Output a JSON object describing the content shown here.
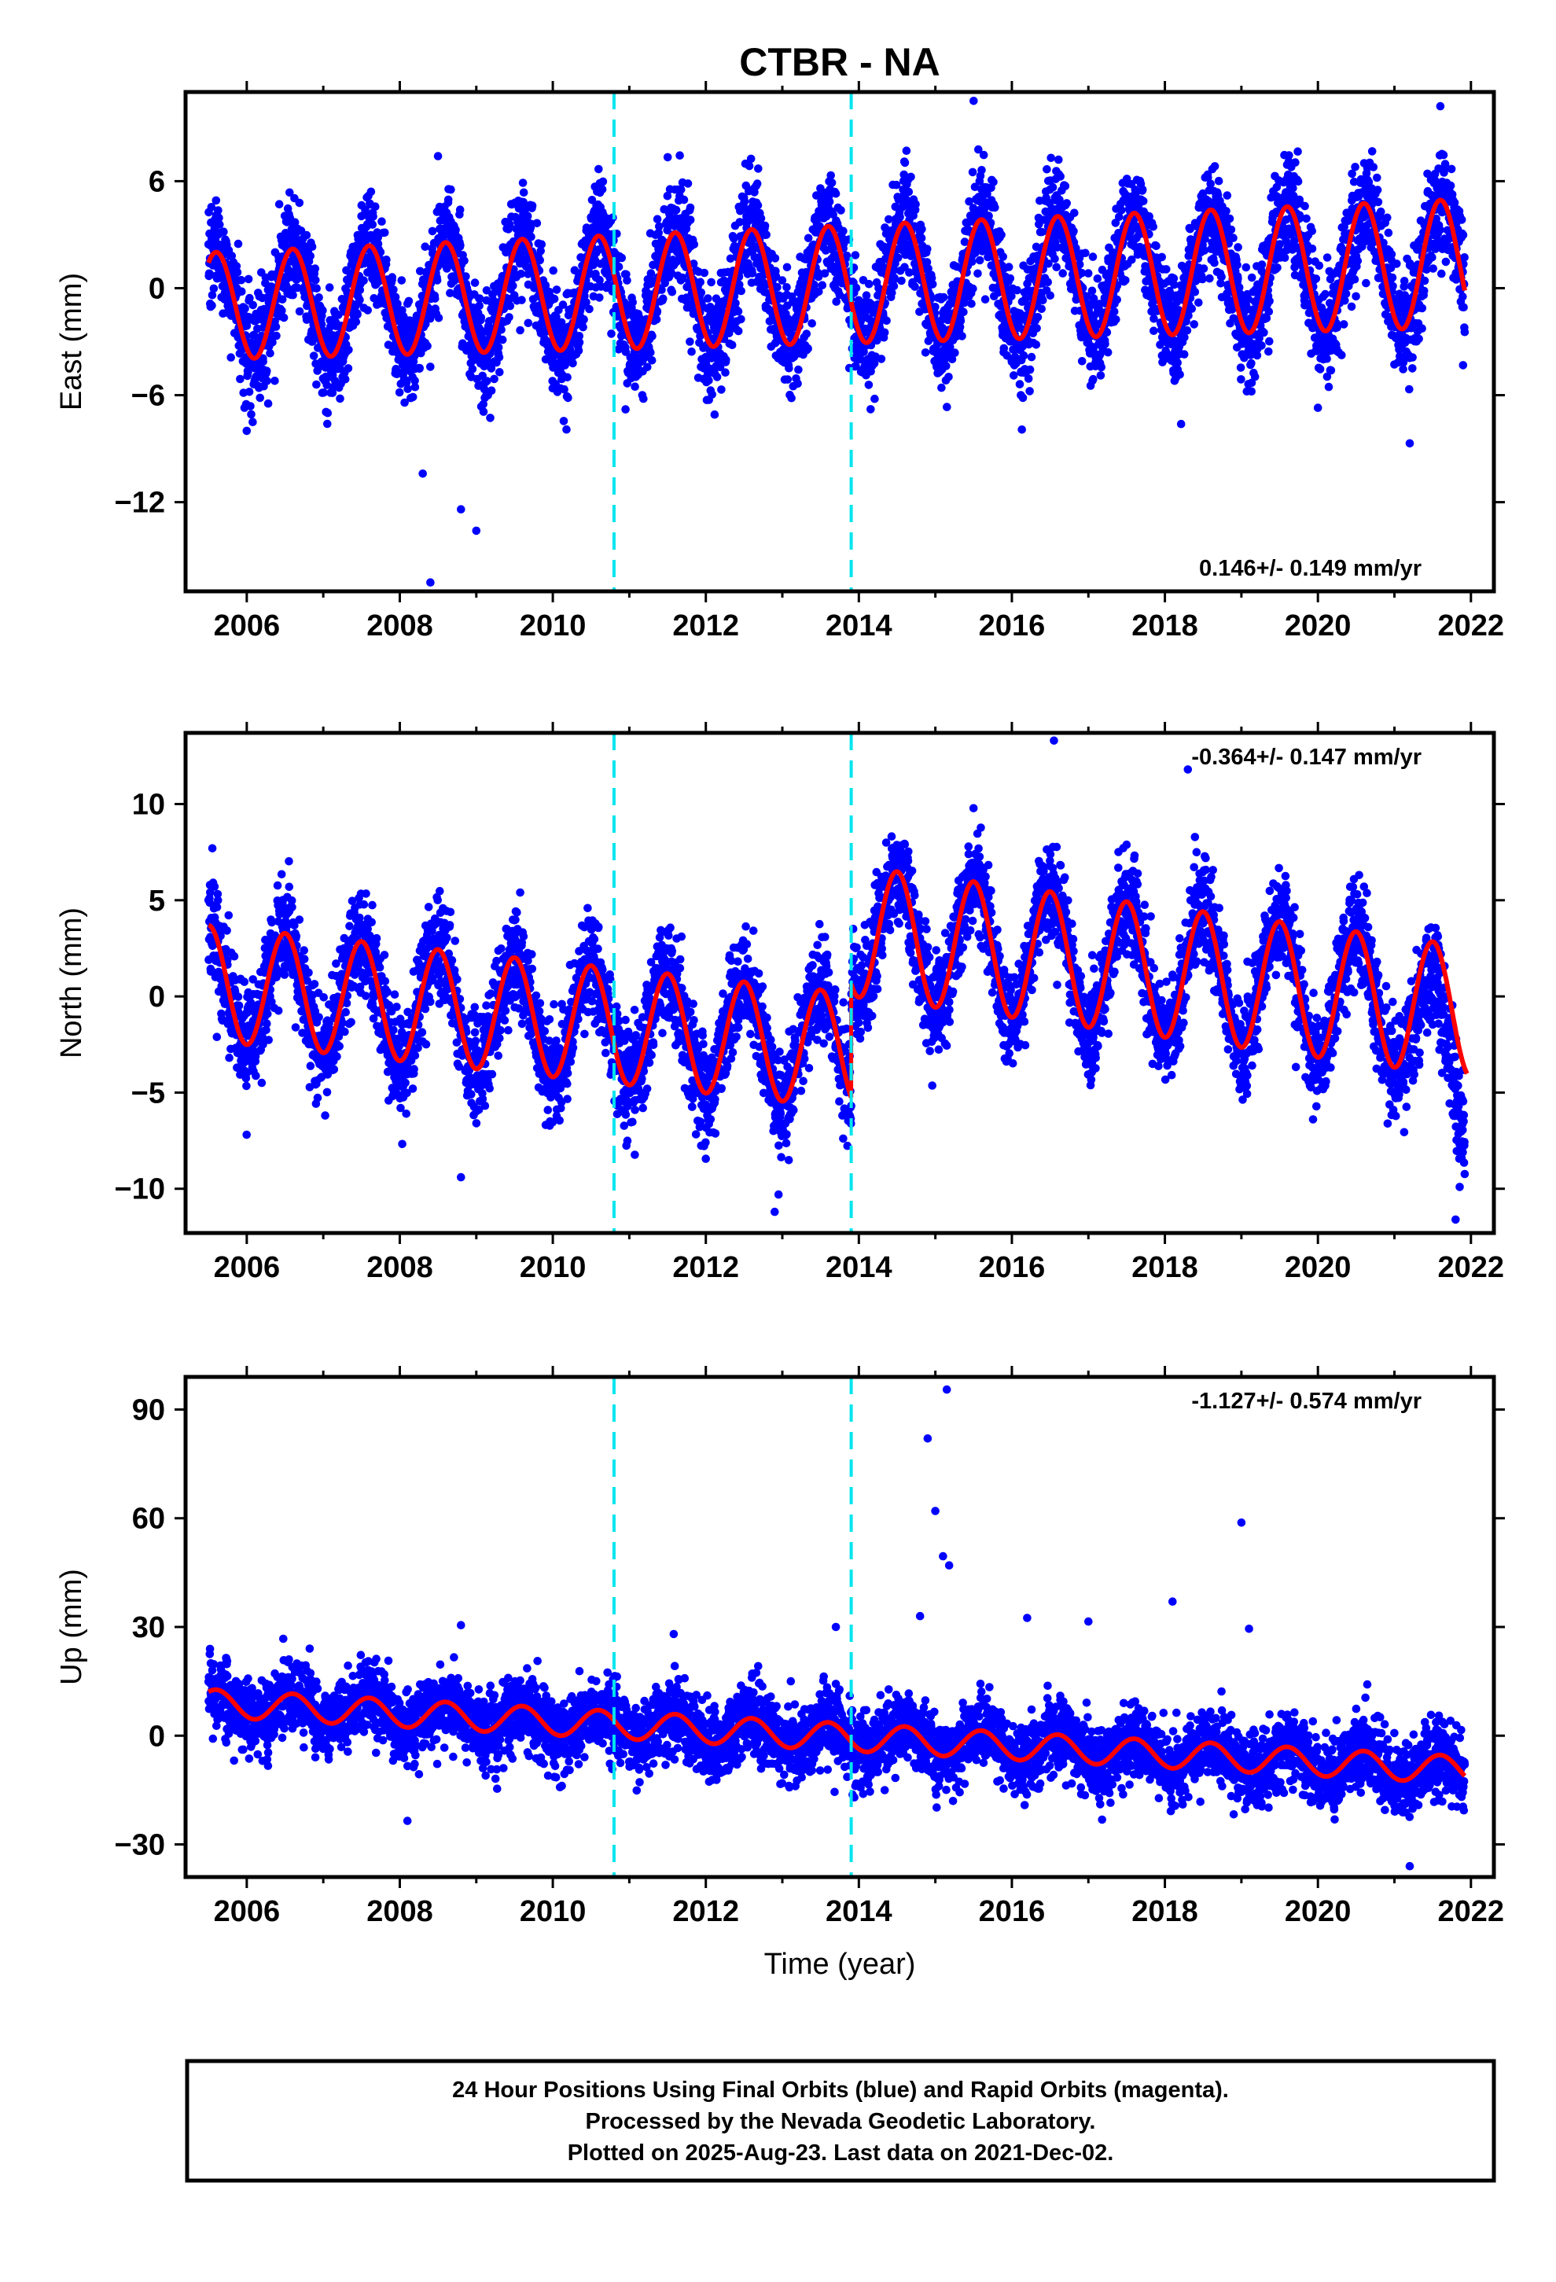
{
  "title": "CTBR - NA",
  "colors": {
    "final_orbits": "#0000ff",
    "fit": "#ff0000",
    "event_lines": "#00e5ee",
    "frame": "#000000"
  },
  "footer": {
    "line1": "24 Hour Positions Using Final Orbits (blue) and Rapid Orbits (magenta).",
    "line2": "Processed by the Nevada Geodetic Laboratory.",
    "line3": "Plotted on 2025-Aug-23. Last data on 2021-Dec-02."
  },
  "chart_data": [
    {
      "type": "scatter",
      "name": "east",
      "ylabel": "East (mm)",
      "xlim": [
        2005.2,
        2022.3
      ],
      "ylim": [
        -17,
        11
      ],
      "xticks": [
        2006,
        2008,
        2010,
        2012,
        2014,
        2016,
        2018,
        2020,
        2022
      ],
      "yticks": [
        -12,
        -6,
        0,
        6
      ],
      "ytick_labels": [
        "−12",
        "−6",
        "0",
        "6"
      ],
      "rate": "0.146+/- 0.149 mm/yr",
      "rate_position": "bottom-right",
      "event_lines": [
        2010.8,
        2013.9
      ],
      "data_start": 2005.5,
      "data_end": 2021.92,
      "fit": {
        "offset": -1.0,
        "trend": 0.146,
        "amplitude_start": 3.0,
        "amplitude_end": 3.6,
        "peak_phase": 0.6
      },
      "scatter_noise": 1.5,
      "outliers": [
        {
          "x": 2008.4,
          "y": -16.5
        },
        {
          "x": 2008.8,
          "y": -12.4
        },
        {
          "x": 2009.0,
          "y": -13.6
        },
        {
          "x": 2008.3,
          "y": -10.4
        },
        {
          "x": 2015.5,
          "y": 10.5
        },
        {
          "x": 2021.6,
          "y": 10.2
        },
        {
          "x": 2021.2,
          "y": -8.7
        },
        {
          "x": 2006.0,
          "y": -8.0
        },
        {
          "x": 2008.5,
          "y": 7.4
        }
      ],
      "yscale": "linear",
      "grid": false,
      "legend": "none"
    },
    {
      "type": "scatter",
      "name": "north",
      "ylabel": "North (mm)",
      "xlim": [
        2005.2,
        2022.3
      ],
      "ylim": [
        -12.3,
        13.7
      ],
      "xticks": [
        2006,
        2008,
        2010,
        2012,
        2014,
        2016,
        2018,
        2020,
        2022
      ],
      "yticks": [
        -10,
        -5,
        0,
        5,
        10
      ],
      "ytick_labels": [
        "−10",
        "−5",
        "0",
        "5",
        "10"
      ],
      "rate": "-0.364+/- 0.147 mm/yr",
      "rate_position": "top-right",
      "event_lines": [
        2010.8,
        2013.9
      ],
      "data_start": 2005.5,
      "data_end": 2021.92,
      "fit_segments": [
        {
          "from": 2005.5,
          "to": 2013.9,
          "offset": 0.7,
          "trend": -0.42,
          "amplitude": 3.0,
          "peak_phase": 0.5
        },
        {
          "from": 2013.9,
          "to": 2021.95,
          "offset": 3.4,
          "trend": -0.52,
          "amplitude": 3.4,
          "peak_phase": 0.5
        }
      ],
      "divergence": {
        "from": 2021.0,
        "slope_per_year": -3.9
      },
      "scatter_noise": 1.3,
      "outliers": [
        {
          "x": 2016.55,
          "y": 13.3
        },
        {
          "x": 2018.3,
          "y": 11.8
        },
        {
          "x": 2012.9,
          "y": -11.2
        },
        {
          "x": 2012.95,
          "y": -10.3
        },
        {
          "x": 2008.8,
          "y": -9.4
        },
        {
          "x": 2021.8,
          "y": -11.6
        },
        {
          "x": 2005.55,
          "y": 7.7
        }
      ],
      "yscale": "linear",
      "grid": false,
      "legend": "none"
    },
    {
      "type": "scatter",
      "name": "up",
      "ylabel": "Up (mm)",
      "xlim": [
        2005.2,
        2022.3
      ],
      "ylim": [
        -39,
        99
      ],
      "xticks": [
        2006,
        2008,
        2010,
        2012,
        2014,
        2016,
        2018,
        2020,
        2022
      ],
      "yticks": [
        -30,
        0,
        30,
        60,
        90
      ],
      "ytick_labels": [
        "−30",
        "0",
        "30",
        "60",
        "90"
      ],
      "xlabel": "Time (year)",
      "rate": "-1.127+/- 0.574 mm/yr",
      "rate_position": "top-right",
      "event_lines": [
        2010.8,
        2013.9
      ],
      "data_start": 2005.5,
      "data_end": 2021.92,
      "fit": {
        "offset": 9.0,
        "trend": -1.127,
        "amplitude_start": 3.8,
        "amplitude_end": 3.8,
        "peak_phase": 0.6
      },
      "scatter_noise": 5.0,
      "outliers": [
        {
          "x": 2015.15,
          "y": 95.5
        },
        {
          "x": 2014.9,
          "y": 82.0
        },
        {
          "x": 2015.0,
          "y": 62.0
        },
        {
          "x": 2015.1,
          "y": 49.5
        },
        {
          "x": 2015.18,
          "y": 47.0
        },
        {
          "x": 2019.0,
          "y": 58.8
        },
        {
          "x": 2019.1,
          "y": 29.5
        },
        {
          "x": 2018.1,
          "y": 37.0
        },
        {
          "x": 2014.8,
          "y": 33.0
        },
        {
          "x": 2016.2,
          "y": 32.5
        },
        {
          "x": 2017.0,
          "y": 31.5
        },
        {
          "x": 2013.7,
          "y": 30.0
        },
        {
          "x": 2008.8,
          "y": 30.5
        },
        {
          "x": 2008.1,
          "y": -23.5
        },
        {
          "x": 2021.2,
          "y": -36.0
        }
      ],
      "yscale": "linear",
      "grid": false,
      "legend": "none"
    }
  ]
}
